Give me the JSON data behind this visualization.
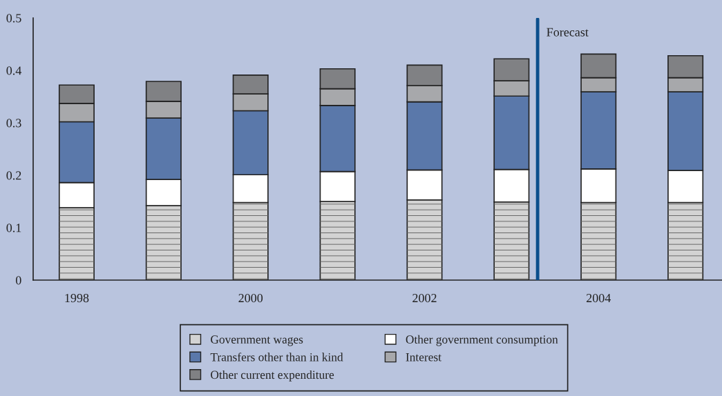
{
  "chart_data": {
    "type": "bar",
    "stacked": true,
    "x": [
      1998,
      1999,
      2000,
      2001,
      2002,
      2003,
      2004,
      2005
    ],
    "xlim": [
      1997.5,
      2005.42
    ],
    "xticks": [
      1998,
      2000,
      2002,
      2004
    ],
    "ylim": [
      0,
      0.5
    ],
    "yticks": [
      0,
      0.1,
      0.2,
      0.3,
      0.4,
      0.5
    ],
    "series": [
      {
        "name": "Government wages",
        "color": "#d3d3d3",
        "values": [
          0.138,
          0.142,
          0.148,
          0.15,
          0.153,
          0.149,
          0.148,
          0.148
        ]
      },
      {
        "name": "Other government consumption",
        "color": "#ffffff",
        "values": [
          0.048,
          0.05,
          0.053,
          0.057,
          0.057,
          0.062,
          0.064,
          0.061
        ]
      },
      {
        "name": "Transfers other than in kind",
        "color": "#5a78aa",
        "values": [
          0.116,
          0.117,
          0.122,
          0.126,
          0.13,
          0.14,
          0.147,
          0.15
        ]
      },
      {
        "name": "Interest",
        "color": "#a7a8ab",
        "values": [
          0.035,
          0.032,
          0.032,
          0.032,
          0.031,
          0.029,
          0.027,
          0.027
        ]
      },
      {
        "name": "Other current expenditure",
        "color": "#808184",
        "values": [
          0.035,
          0.038,
          0.036,
          0.038,
          0.039,
          0.042,
          0.045,
          0.042
        ]
      }
    ],
    "ref_lines": [
      {
        "axis": "x",
        "value": 2003.3,
        "label": "Forecast",
        "color": "#0b4f8c"
      }
    ],
    "grid": false,
    "legend": "bottom"
  }
}
